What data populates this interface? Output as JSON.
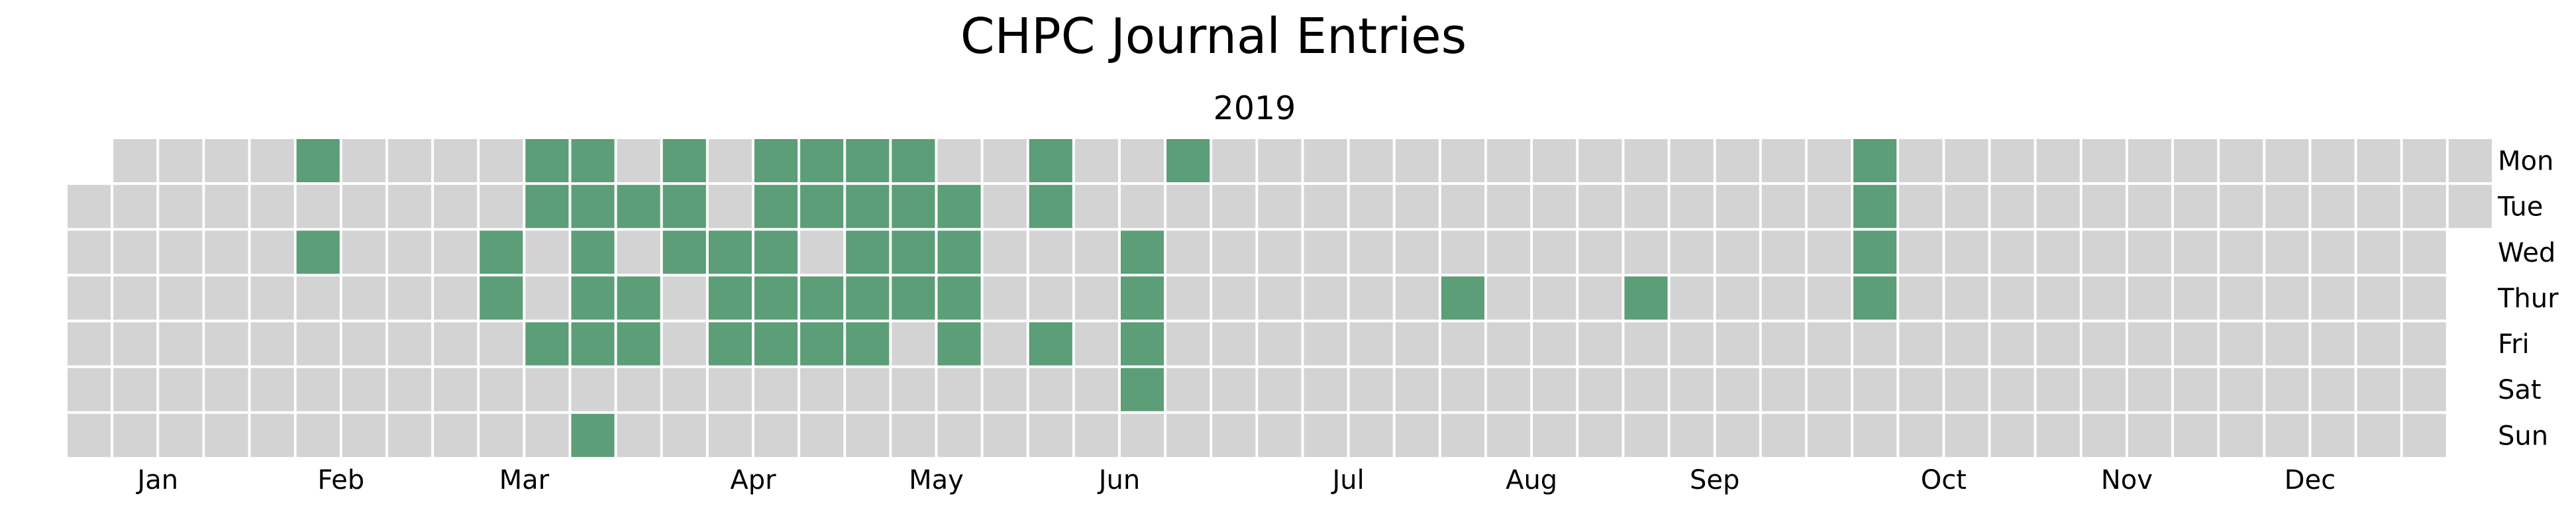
{
  "chart_data": {
    "type": "heatmap",
    "title": "CHPC Journal Entries",
    "subtitle": "2019",
    "year": 2019,
    "months": [
      "Jan",
      "Feb",
      "Mar",
      "Apr",
      "May",
      "Jun",
      "Jul",
      "Aug",
      "Sep",
      "Oct",
      "Nov",
      "Dec"
    ],
    "weekdays": [
      "Mon",
      "Tue",
      "Wed",
      "Thur",
      "Fri",
      "Sat",
      "Sun"
    ],
    "colors": {
      "empty": "#d3d3d3",
      "entry": "#5b9e77",
      "gridline": "#ffffff"
    },
    "entry_dates": [
      "2019-02-04",
      "2019-02-06",
      "2019-03-06",
      "2019-03-07",
      "2019-03-11",
      "2019-03-12",
      "2019-03-15",
      "2019-03-18",
      "2019-03-19",
      "2019-03-20",
      "2019-03-21",
      "2019-03-22",
      "2019-03-24",
      "2019-03-26",
      "2019-03-28",
      "2019-03-29",
      "2019-04-01",
      "2019-04-02",
      "2019-04-03",
      "2019-04-10",
      "2019-04-11",
      "2019-04-12",
      "2019-04-15",
      "2019-04-16",
      "2019-04-17",
      "2019-04-18",
      "2019-04-19",
      "2019-04-22",
      "2019-04-23",
      "2019-04-25",
      "2019-04-26",
      "2019-04-29",
      "2019-04-30",
      "2019-05-01",
      "2019-05-02",
      "2019-05-03",
      "2019-05-06",
      "2019-05-07",
      "2019-05-08",
      "2019-05-09",
      "2019-05-14",
      "2019-05-15",
      "2019-05-16",
      "2019-05-17",
      "2019-05-27",
      "2019-05-28",
      "2019-05-31",
      "2019-06-12",
      "2019-06-13",
      "2019-06-14",
      "2019-06-15",
      "2019-06-17",
      "2019-08-01",
      "2019-08-29",
      "2019-09-30",
      "2019-10-01",
      "2019-10-02",
      "2019-10-03"
    ]
  }
}
